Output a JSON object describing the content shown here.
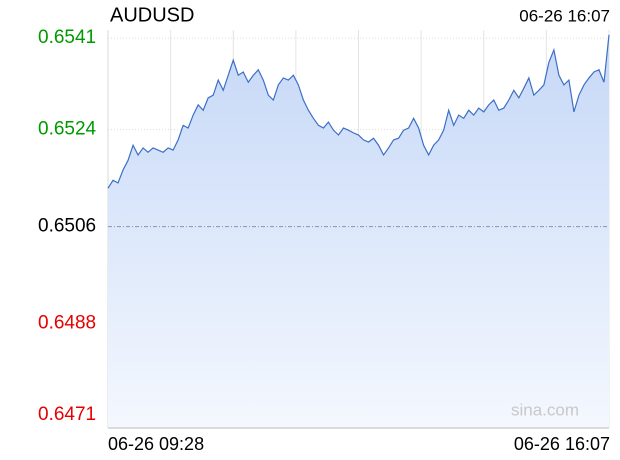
{
  "chart_data": {
    "type": "line",
    "title": "AUDUSD",
    "timestamp": "06-26 16:07",
    "watermark": "sina.com",
    "x_labels": [
      "06-26 09:28",
      "06-26 16:07"
    ],
    "ylim": [
      0.64686,
      0.65425
    ],
    "yticks": [
      0.6541,
      0.6524,
      0.6506,
      0.6488,
      0.6471
    ],
    "prev_close": 0.6506,
    "up_color": "#009900",
    "down_color": "#e60000",
    "flat_color": "#000000",
    "grid": true,
    "series": [
      {
        "name": "AUDUSD",
        "color": "#3d6fc7",
        "values": [
          0.65131,
          0.65146,
          0.65141,
          0.65165,
          0.65183,
          0.65211,
          0.65193,
          0.65206,
          0.65198,
          0.65206,
          0.65202,
          0.65198,
          0.65206,
          0.65202,
          0.65221,
          0.65248,
          0.65243,
          0.65267,
          0.65286,
          0.65276,
          0.65299,
          0.65304,
          0.65332,
          0.65313,
          0.65341,
          0.65369,
          0.65341,
          0.65347,
          0.65328,
          0.65341,
          0.65351,
          0.65332,
          0.65304,
          0.65295,
          0.65323,
          0.65336,
          0.65332,
          0.65341,
          0.65323,
          0.65295,
          0.65276,
          0.65261,
          0.65248,
          0.65243,
          0.65254,
          0.65239,
          0.6523,
          0.65243,
          0.65239,
          0.65234,
          0.6523,
          0.65221,
          0.65217,
          0.65224,
          0.65211,
          0.65193,
          0.65206,
          0.65221,
          0.65224,
          0.65239,
          0.65243,
          0.65261,
          0.65243,
          0.65211,
          0.65193,
          0.65211,
          0.65221,
          0.65239,
          0.65276,
          0.65248,
          0.65267,
          0.65261,
          0.65276,
          0.65267,
          0.6528,
          0.65273,
          0.65286,
          0.65295,
          0.65276,
          0.6528,
          0.65295,
          0.65313,
          0.65299,
          0.65317,
          0.65336,
          0.65304,
          0.65313,
          0.65323,
          0.65365,
          0.65388,
          0.65341,
          0.65323,
          0.65332,
          0.65273,
          0.65304,
          0.65323,
          0.65336,
          0.65347,
          0.65351,
          0.65328,
          0.65416
        ]
      }
    ]
  }
}
